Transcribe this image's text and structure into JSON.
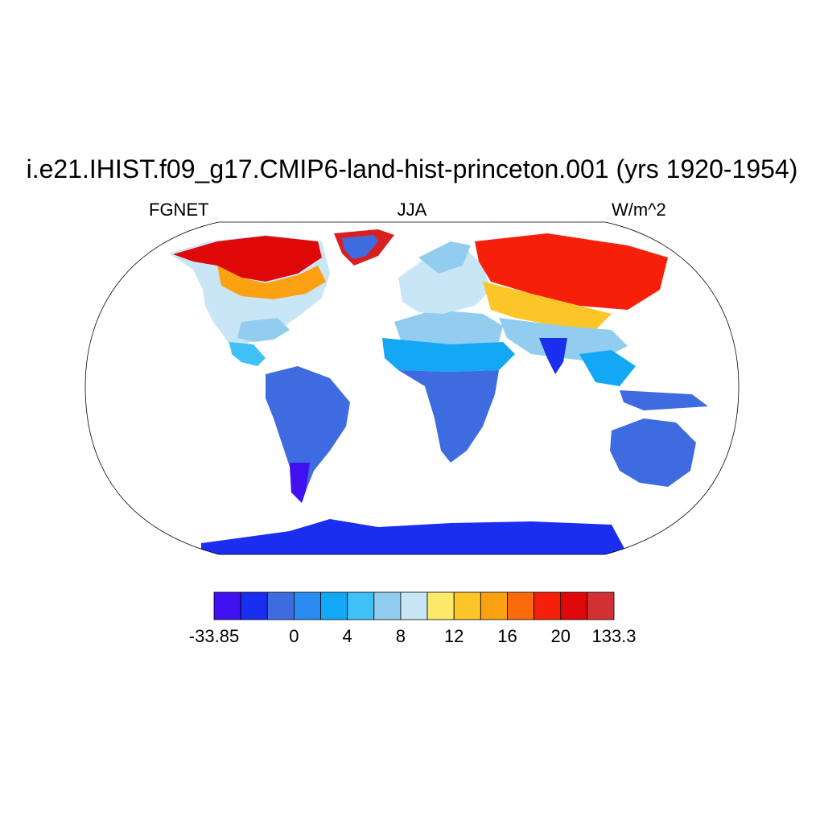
{
  "title": "i.e21.IHIST.f09_g17.CMIP6-land-hist-princeton.001 (yrs 1920-1954)",
  "subtitle_left": "FGNET",
  "subtitle_center": "JJA",
  "subtitle_right": "W/m^2",
  "colorbar": {
    "colors": [
      "#4010f0",
      "#1a2ef0",
      "#3f6be0",
      "#2a8cf2",
      "#12a8f6",
      "#3fc1f7",
      "#92cdef",
      "#c9e6f6",
      "#fce96a",
      "#fcc528",
      "#fca212",
      "#fb6b0b",
      "#f51f0a",
      "#df0808",
      "#d23032"
    ],
    "labels": [
      "-33.85",
      "0",
      "4",
      "8",
      "12",
      "16",
      "20",
      "133.3"
    ]
  }
}
